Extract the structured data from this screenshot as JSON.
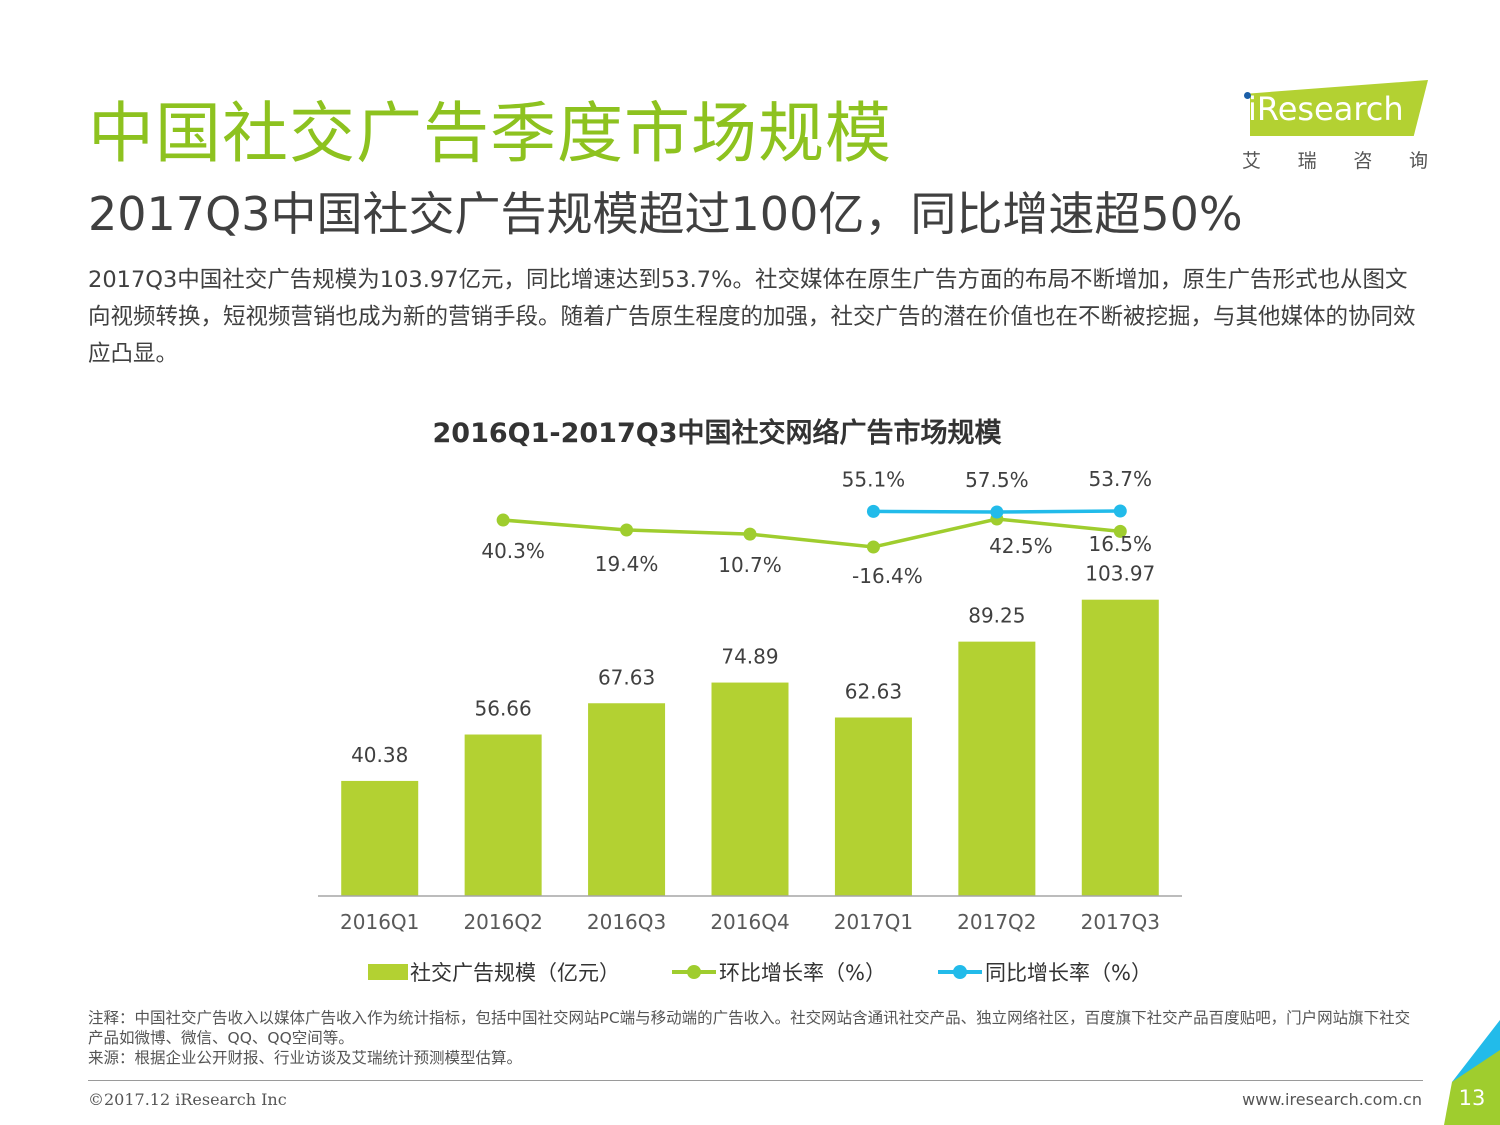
{
  "header": {
    "title": "中国社交广告季度市场规模",
    "subtitle": "2017Q3中国社交广告规模超过100亿，同比增速超50%",
    "body": "2017Q3中国社交广告规模为103.97亿元，同比增速达到53.7%。社交媒体在原生广告方面的布局不断增加，原生广告形式也从图文向视频转换，短视频营销也成为新的营销手段。随着广告原生程度的加强，社交广告的潜在价值也在不断被挖掘，与其他媒体的协同效应凸显。"
  },
  "logo": {
    "brand": "iResearch",
    "cn_chars": [
      "艾",
      "瑞",
      "咨",
      "询"
    ]
  },
  "chart_data": {
    "type": "bar",
    "title": "2016Q1-2017Q3中国社交网络广告市场规模",
    "categories": [
      "2016Q1",
      "2016Q2",
      "2016Q3",
      "2016Q4",
      "2017Q1",
      "2017Q2",
      "2017Q3"
    ],
    "bars": {
      "name": "社交广告规模（亿元）",
      "values": [
        40.38,
        56.66,
        67.63,
        74.89,
        62.63,
        89.25,
        103.97
      ],
      "labels": [
        "40.38",
        "56.66",
        "67.63",
        "74.89",
        "62.63",
        "89.25",
        "103.97"
      ]
    },
    "qoq": {
      "name": "环比增长率（%）",
      "values": [
        40.3,
        19.4,
        10.7,
        -16.4,
        42.5,
        16.5
      ],
      "labels": [
        "40.3%",
        "19.4%",
        "10.7%",
        "-16.4%",
        "42.5%",
        "16.5%"
      ],
      "start_index": 1
    },
    "yoy": {
      "name": "同比增长率（%）",
      "values": [
        55.1,
        57.5,
        53.7
      ],
      "labels": [
        "55.1%",
        "57.5%",
        "53.7%"
      ],
      "start_index": 4
    },
    "ylim": [
      0,
      110
    ],
    "legend_position": "bottom",
    "colors": {
      "bar": "#b3d132",
      "qoq": "#9fcd2e",
      "yoy": "#22bbea"
    }
  },
  "notes": {
    "note": "注释：中国社交广告收入以媒体广告收入作为统计指标，包括中国社交网站PC端与移动端的广告收入。社交网站含通讯社交产品、独立网络社区，百度旗下社交产品百度贴吧，门户网站旗下社交产品如微博、微信、QQ、QQ空间等。",
    "source": "来源：根据企业公开财报、行业访谈及艾瑞统计预测模型估算。"
  },
  "footer": {
    "copyright": "©2017.12 iResearch Inc",
    "website": "www.iresearch.com.cn",
    "page": "13"
  }
}
